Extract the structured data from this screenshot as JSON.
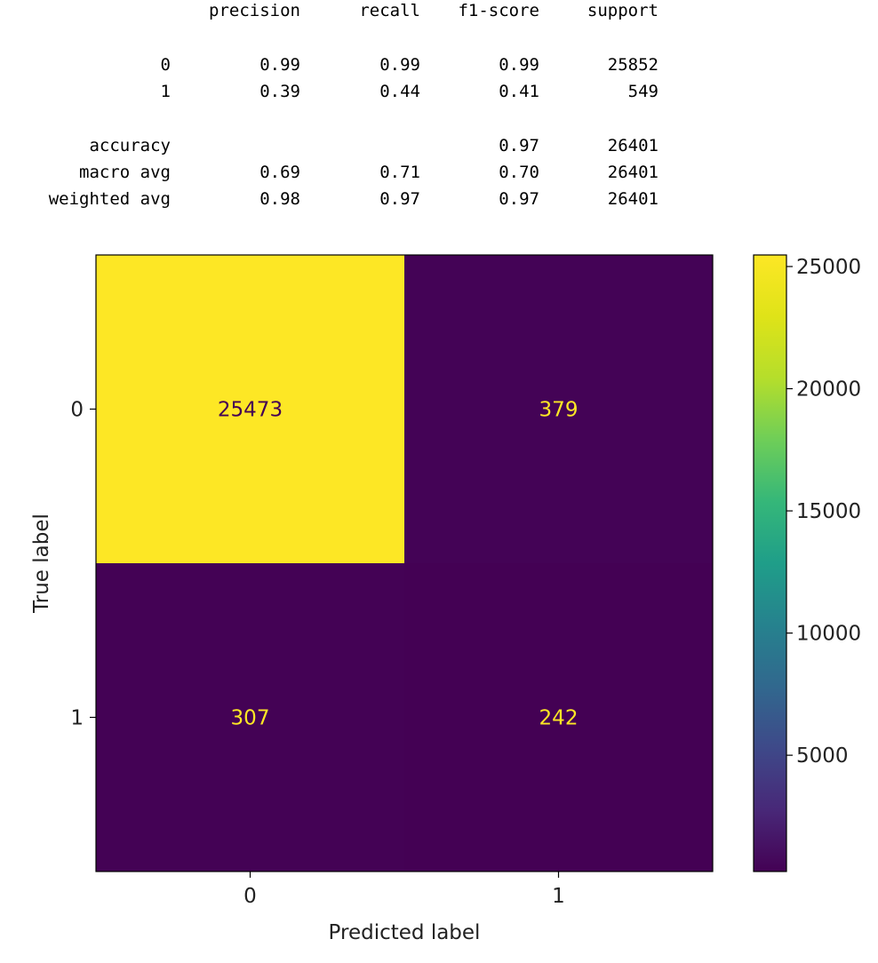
{
  "report": {
    "headers": [
      "precision",
      "recall",
      "f1-score",
      "support"
    ],
    "rows": [
      {
        "label": "0",
        "precision": "0.99",
        "recall": "0.99",
        "f1": "0.99",
        "support": "25852"
      },
      {
        "label": "1",
        "precision": "0.39",
        "recall": "0.44",
        "f1": "0.41",
        "support": "549"
      },
      {
        "label": "accuracy",
        "precision": "",
        "recall": "",
        "f1": "0.97",
        "support": "26401"
      },
      {
        "label": "macro avg",
        "precision": "0.69",
        "recall": "0.71",
        "f1": "0.70",
        "support": "26401"
      },
      {
        "label": "weighted avg",
        "precision": "0.98",
        "recall": "0.97",
        "f1": "0.97",
        "support": "26401"
      }
    ]
  },
  "chart_data": {
    "type": "heatmap",
    "title": "",
    "xlabel": "Predicted label",
    "ylabel": "True label",
    "x_categories": [
      "0",
      "1"
    ],
    "y_categories": [
      "0",
      "1"
    ],
    "values": [
      [
        25473,
        379
      ],
      [
        307,
        242
      ]
    ],
    "colormap": "viridis",
    "colors": {
      "high": "#fde725",
      "low": "#440154",
      "high_text": "#440154",
      "low_text": "#fde725"
    },
    "colorbar": {
      "range": [
        242,
        25473
      ],
      "ticks": [
        5000,
        10000,
        15000,
        20000,
        25000
      ]
    },
    "grid": false
  }
}
